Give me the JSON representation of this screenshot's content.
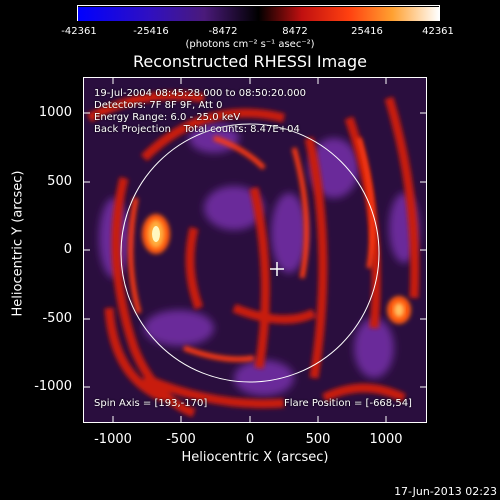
{
  "colorbar": {
    "ticks": [
      "-42361",
      "-25416",
      "-8472",
      "8472",
      "25416",
      "42361"
    ],
    "units": "(photons cm⁻² s⁻¹ asec⁻²)"
  },
  "title": "Reconstructed RHESSI Image",
  "info": {
    "time": "19-Jul-2004 08:45:28.000 to 08:50:20.000",
    "detectors": "Detectors: 7F 8F 9F, Att 0",
    "energy": "Energy Range: 6.0 - 25.0 keV",
    "method": "Back Projection    Total counts: 8.47E+04",
    "spin_axis": "Spin Axis = [193,-170]",
    "flare_position": "Flare Position = [-668,54]"
  },
  "axes": {
    "xlabel": "Heliocentric X (arcsec)",
    "ylabel": "Heliocentric Y (arcsec)",
    "xticks": [
      "-1000",
      "-500",
      "0",
      "500",
      "1000"
    ],
    "yticks": [
      "1000",
      "500",
      "0",
      "-500",
      "-1000"
    ]
  },
  "footer": "17-Jun-2013 02:23",
  "colors": {
    "negative": "#1a0a3a",
    "purple": "#6a2a9a",
    "red": "#e02010",
    "orange": "#ff8020",
    "bright": "#fff8c0",
    "limb": "#ffffff"
  }
}
